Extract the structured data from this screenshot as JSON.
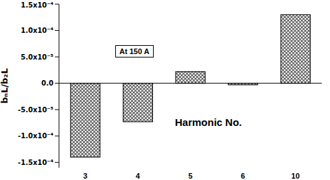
{
  "chart_data": {
    "type": "bar",
    "categories": [
      "3",
      "4",
      "5",
      "6",
      "10"
    ],
    "values": [
      -0.00014,
      -7.3e-05,
      2.2e-05,
      -3e-06,
      0.00013
    ],
    "color": "#555555",
    "x_label": "Harmonic No.",
    "y_label": "bₙL/b₂L",
    "annotation": "At 150 A",
    "ylim": [
      -0.00016,
      0.00015
    ],
    "yticks": [
      {
        "value": -0.00015,
        "label": "-1.5x10⁻⁴"
      },
      {
        "value": -0.0001,
        "label": "-1.0x10⁻⁴"
      },
      {
        "value": -5e-05,
        "label": "-5.0x10⁻⁵"
      },
      {
        "value": 0,
        "label": "0.0"
      },
      {
        "value": 5e-05,
        "label": "5.0x10⁻⁵"
      },
      {
        "value": 0.0001,
        "label": "1.0x10⁻⁴"
      },
      {
        "value": 0.00015,
        "label": "1.5x10⁻⁴"
      }
    ],
    "grid": false
  }
}
